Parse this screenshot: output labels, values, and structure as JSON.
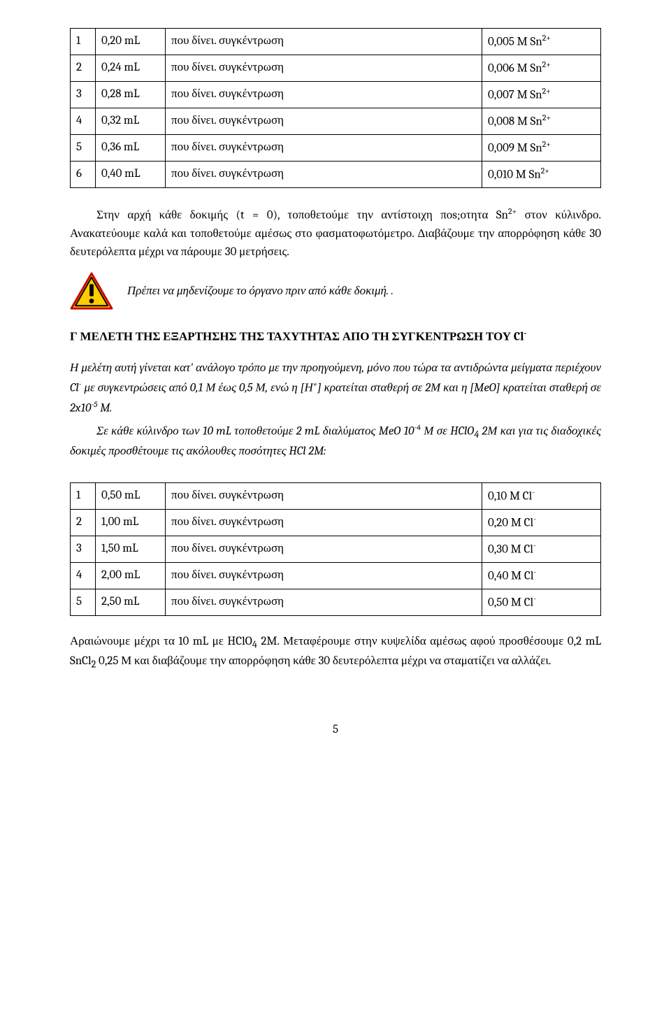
{
  "table1": {
    "rows": [
      {
        "idx": "1",
        "amt": "0,20 mL",
        "phrase": "που δίνει. συγκέντρωση",
        "conc": "0,005 M Sn",
        "sup": "2+"
      },
      {
        "idx": "2",
        "amt": "0,24 mL",
        "phrase": "που δίνει. συγκέντρωση",
        "conc": "0,006 M Sn",
        "sup": "2+"
      },
      {
        "idx": "3",
        "amt": "0,28 mL",
        "phrase": "που δίνει. συγκέντρωση",
        "conc": "0,007 M Sn",
        "sup": "2+"
      },
      {
        "idx": "4",
        "amt": "0,32 mL",
        "phrase": "που δίνει. συγκέντρωση",
        "conc": "0,008 M Sn",
        "sup": "2+"
      },
      {
        "idx": "5",
        "amt": "0,36 mL",
        "phrase": "που δίνει. συγκέντρωση",
        "conc": "0,009 M Sn",
        "sup": "2+"
      },
      {
        "idx": "6",
        "amt": "0,40 mL",
        "phrase": "που δίνει. συγκέντρωση",
        "conc": "0,010 M Sn",
        "sup": "2+"
      }
    ]
  },
  "para1a": "Στην αρχή κάθε δοκιμής (t = 0), τοποθετούμε την αντίστοιχη ποs;οτητα Sn",
  "para1a_sup": "2+",
  "para1b": " στον κύλινδρο. Ανακατεύουμε καλά και τοποθετούμε αμέσως στο φασματοφωτόμετρο. Διαβάζουμε την απορρόφηση κάθε 30 δευτερόλεπτα μέχρι να πάρουμε 30 μετρήσεις.",
  "callout": "Πρέπει να μηδενίζουμε το όργανο πριν από κάθε δοκιμή. .",
  "heading_a": "Γ ΜΕΛΕΤΗ ΤΗΣ ΕΞΑΡΤΗΣΗΣ ΤΗΣ ΤΑΧΥΤΗΤΑΣ ΑΠΟ ΤΗ ΣΥΓΚΕΝΤΡΩΣΗ ΤΟΥ Cl",
  "heading_sup": "-",
  "it_p1_a": "Η μελέτη αυτή γίνεται κατ' ανάλογο τρόπο με την προηγούμενη, μόνο που τώρα τα αντιδρώντα μείγματα περιέχουν Cl",
  "it_p1_sup1": "-",
  "it_p1_b": " με συγκεντρώσεις από 0,1 Μ έως 0,5 Μ, ενώ η [Η",
  "it_p1_sup2": "+",
  "it_p1_c": "] κρατείται σταθερή σε 2Μ και η [MeO] κρατείται σταθερή σε  2x10",
  "it_p1_sup3": "-5",
  "it_p1_d": " M.",
  "it_p2_a": "Σε κάθε κύλινδρο των 10 mL τοποθετούμε 2 mL διαλύματος MeO 10",
  "it_p2_sup1": "-4",
  "it_p2_b": " Μ σε HClO",
  "it_p2_sub1": "4",
  "it_p2_c": " 2Μ και για τις διαδοχικές δοκιμές προσθέτουμε τις ακόλουθες ποσότητες HCl 2M:",
  "table2": {
    "rows": [
      {
        "idx": "1",
        "amt": "0,50 mL",
        "phrase": "που δίνει. συγκέντρωση",
        "conc": "0,10 M Cl",
        "sup": "-"
      },
      {
        "idx": "2",
        "amt": "1,00 mL",
        "phrase": "που δίνει. συγκέντρωση",
        "conc": "0,20 M Cl",
        "sup": "-"
      },
      {
        "idx": "3",
        "amt": "1,50 mL",
        "phrase": "που δίνει. συγκέντρωση",
        "conc": "0,30 M Cl",
        "sup": "-"
      },
      {
        "idx": "4",
        "amt": "2,00 mL",
        "phrase": "που δίνει. συγκέντρωση",
        "conc": "0,40 M Cl",
        "sup": "-"
      },
      {
        "idx": "5",
        "amt": "2,50 mL",
        "phrase": "που δίνει. συγκέντρωση",
        "conc": "0,50 M Cl",
        "sup": "-"
      }
    ]
  },
  "para2_a": "Αραιώνουμε μέχρι τα 10 mL με HClO",
  "para2_sub1": "4",
  "para2_b": " 2M. Μεταφέρουμε στην κυψελίδα αμέσως αφού προσθέσουμε 0,2 mL  SnCl",
  "para2_sub2": "2",
  "para2_c": " 0,25 Μ και διαβάζουμε την απορρόφηση κάθε 30 δευτερόλεπτα μέχρι να σταματίζει να αλλάζει.",
  "page_number": "5",
  "colors": {
    "icon_yellow": "#ffcc00",
    "icon_red": "#cc0000",
    "icon_black": "#000000"
  }
}
